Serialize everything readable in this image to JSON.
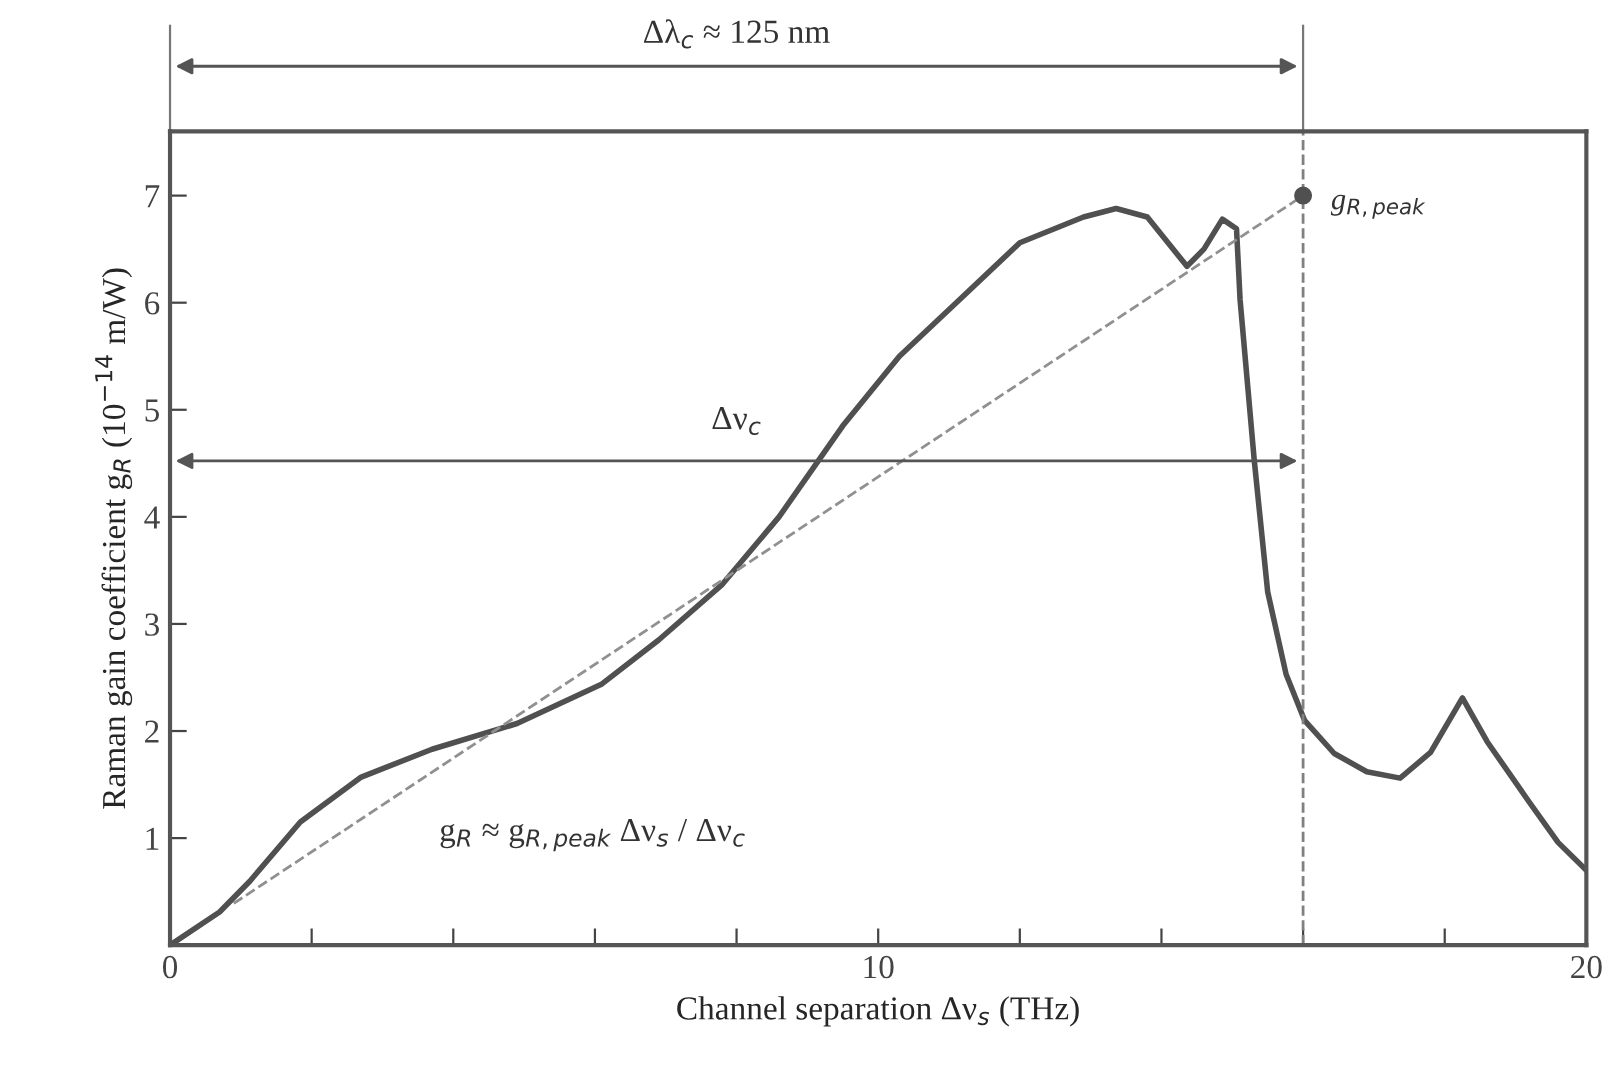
{
  "chart_data": {
    "type": "line",
    "xlabel": "Channel separation Δν$_{s}$ (THz)",
    "ylabel": "Raman gain coefficient g$_{R}$ (10$^{−14}$ m/W)",
    "xlim": [
      0,
      20
    ],
    "ylim": [
      0,
      7.6
    ],
    "xticks": [
      0,
      {
        "value": 2,
        "label": null
      },
      {
        "value": 4,
        "label": null
      },
      {
        "value": 6,
        "label": null
      },
      {
        "value": 8,
        "label": null
      },
      10,
      {
        "value": 12,
        "label": null
      },
      {
        "value": 14,
        "label": null
      },
      {
        "value": 16,
        "label": null
      },
      {
        "value": 18,
        "label": null
      },
      20
    ],
    "yticks": [
      1,
      2,
      3,
      4,
      5,
      6,
      7
    ],
    "grid": false,
    "legend": false,
    "series": [
      {
        "color": "#505050",
        "line_style": "solid",
        "marker": "none",
        "x": [
          0,
          0.7,
          1.13,
          1.84,
          2.7,
          3.7,
          4.9,
          6.1,
          6.9,
          7.8,
          8.6,
          9.5,
          10.3,
          11.2,
          12.0,
          12.9,
          13.36,
          13.8,
          14.36,
          14.6,
          14.86,
          15.06,
          15.11,
          15.31,
          15.5,
          15.76,
          16.02,
          16.44,
          16.9,
          17.37,
          17.8,
          18.25,
          18.6,
          19.2,
          19.6,
          20
        ],
        "values": [
          0,
          0.31,
          0.6,
          1.15,
          1.57,
          1.83,
          2.07,
          2.44,
          2.85,
          3.37,
          4.0,
          4.85,
          5.5,
          6.06,
          6.56,
          6.8,
          6.88,
          6.8,
          6.34,
          6.5,
          6.78,
          6.69,
          6.03,
          4.53,
          3.3,
          2.53,
          2.1,
          1.79,
          1.62,
          1.56,
          1.8,
          2.31,
          1.9,
          1.33,
          0.96,
          0.7
        ]
      },
      {
        "color": "#909090",
        "line_style": "dashed",
        "marker": "none",
        "x": [
          0.9,
          16
        ],
        "values": [
          0.39,
          7.0
        ]
      },
      {
        "name": "g$_{R,peak}$",
        "type": "scatter",
        "color": "#505050",
        "marker": "circle",
        "x": [
          16
        ],
        "values": [
          7.0
        ]
      }
    ],
    "ref_lines": [
      {
        "axis": "x",
        "value": 16,
        "color": "#808080",
        "line_style": "dashed"
      }
    ],
    "annotations": [
      "Δλ$_{c}$ ≈ 125 nm",
      "Δν$_{c}$",
      "g$_{R}$ ≈ g$_{R,peak}$ Δν$_{s}$ / Δν$_{c}$"
    ]
  }
}
